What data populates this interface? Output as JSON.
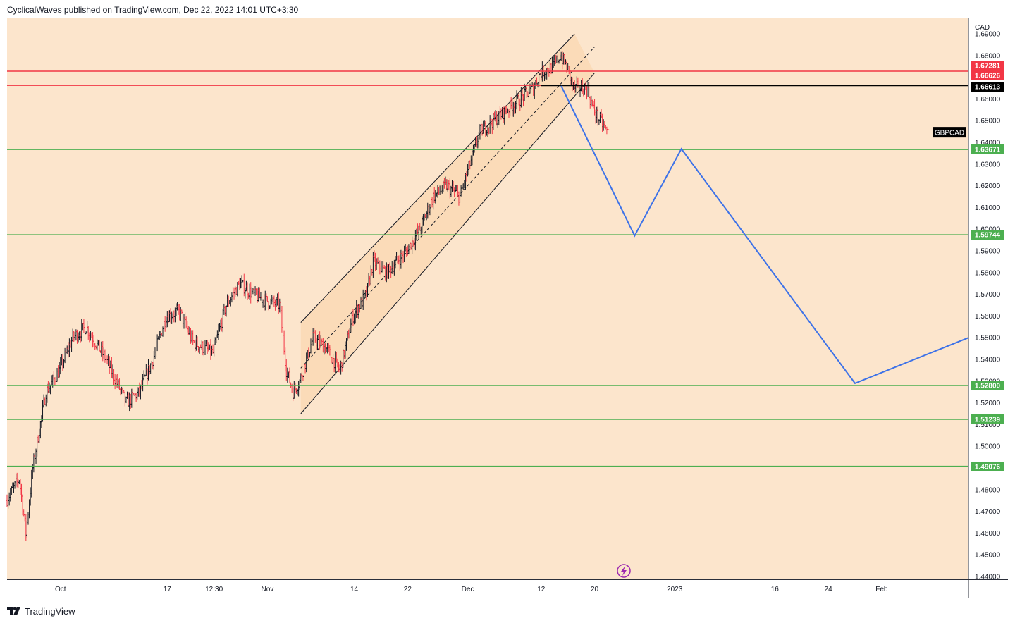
{
  "header": {
    "text": "CyclicalWaves published on TradingView.com, Dec 22, 2022 14:01 UTC+3:30"
  },
  "footer": {
    "brand": "TradingView",
    "logo_icon": "tradingview-logo-icon"
  },
  "chart_data": {
    "type": "candlestick",
    "symbol": "GBPCAD",
    "currency": "CAD",
    "background": "#fce5cc",
    "ylim": [
      1.44,
      1.69
    ],
    "y_ticks": [
      1.44,
      1.45,
      1.46,
      1.47,
      1.48,
      1.49,
      1.5,
      1.51,
      1.52,
      1.53,
      1.54,
      1.55,
      1.56,
      1.57,
      1.58,
      1.59,
      1.6,
      1.61,
      1.62,
      1.63,
      1.64,
      1.65,
      1.66,
      1.67,
      1.68,
      1.69
    ],
    "y_tick_labels": [
      "1.44000",
      "1.45000",
      "1.46000",
      "1.47000",
      "1.48000",
      "1.49000",
      "1.50000",
      "1.51000",
      "1.52000",
      "1.53000",
      "1.54000",
      "1.55000",
      "1.56000",
      "1.57000",
      "1.58000",
      "1.59000",
      "1.60000",
      "1.61000",
      "1.62000",
      "1.63000",
      "1.64000",
      "1.65000",
      "1.66000",
      "1.67000",
      "1.68000",
      "1.69000"
    ],
    "x_start": "2022-09-23",
    "x_end": "2023-02-14",
    "x_ticks": [
      {
        "label": "Oct",
        "date": "2022-10-01"
      },
      {
        "label": "17",
        "date": "2022-10-17"
      },
      {
        "label": "12:30",
        "date": "2022-10-24"
      },
      {
        "label": "Nov",
        "date": "2022-11-01"
      },
      {
        "label": "14",
        "date": "2022-11-14"
      },
      {
        "label": "22",
        "date": "2022-11-22"
      },
      {
        "label": "Dec",
        "date": "2022-12-01"
      },
      {
        "label": "12",
        "date": "2022-12-12"
      },
      {
        "label": "20",
        "date": "2022-12-20"
      },
      {
        "label": "2023",
        "date": "2023-01-01"
      },
      {
        "label": "16",
        "date": "2023-01-16"
      },
      {
        "label": "24",
        "date": "2023-01-24"
      },
      {
        "label": "Feb",
        "date": "2023-02-01"
      }
    ],
    "price_path": [
      [
        "2022-09-23",
        1.475
      ],
      [
        "2022-09-25",
        1.485
      ],
      [
        "2022-09-26",
        1.46
      ],
      [
        "2022-09-27",
        1.49
      ],
      [
        "2022-09-29",
        1.525
      ],
      [
        "2022-10-01",
        1.535
      ],
      [
        "2022-10-03",
        1.55
      ],
      [
        "2022-10-05",
        1.555
      ],
      [
        "2022-10-08",
        1.54
      ],
      [
        "2022-10-11",
        1.52
      ],
      [
        "2022-10-13",
        1.525
      ],
      [
        "2022-10-15",
        1.54
      ],
      [
        "2022-10-17",
        1.56
      ],
      [
        "2022-10-19",
        1.562
      ],
      [
        "2022-10-21",
        1.548
      ],
      [
        "2022-10-24",
        1.543
      ],
      [
        "2022-10-26",
        1.565
      ],
      [
        "2022-10-28",
        1.575
      ],
      [
        "2022-10-30",
        1.57
      ],
      [
        "2022-11-01",
        1.567
      ],
      [
        "2022-11-03",
        1.565
      ],
      [
        "2022-11-04",
        1.535
      ],
      [
        "2022-11-05",
        1.525
      ],
      [
        "2022-11-06",
        1.53
      ],
      [
        "2022-11-08",
        1.55
      ],
      [
        "2022-11-10",
        1.545
      ],
      [
        "2022-11-12",
        1.535
      ],
      [
        "2022-11-14",
        1.56
      ],
      [
        "2022-11-16",
        1.57
      ],
      [
        "2022-11-17",
        1.585
      ],
      [
        "2022-11-19",
        1.58
      ],
      [
        "2022-11-22",
        1.59
      ],
      [
        "2022-11-24",
        1.6
      ],
      [
        "2022-11-26",
        1.615
      ],
      [
        "2022-11-28",
        1.62
      ],
      [
        "2022-11-30",
        1.615
      ],
      [
        "2022-12-01",
        1.625
      ],
      [
        "2022-12-03",
        1.645
      ],
      [
        "2022-12-05",
        1.65
      ],
      [
        "2022-12-07",
        1.655
      ],
      [
        "2022-12-09",
        1.66
      ],
      [
        "2022-12-11",
        1.665
      ],
      [
        "2022-12-12",
        1.672
      ],
      [
        "2022-12-14",
        1.675
      ],
      [
        "2022-12-15",
        1.68
      ],
      [
        "2022-12-16",
        1.675
      ],
      [
        "2022-12-17",
        1.665
      ],
      [
        "2022-12-19",
        1.665
      ],
      [
        "2022-12-20",
        1.655
      ],
      [
        "2022-12-21",
        1.65
      ],
      [
        "2022-12-22",
        1.645
      ]
    ],
    "horizontal_levels": [
      {
        "value": 1.67281,
        "label": "1.67281",
        "color": "#f23645"
      },
      {
        "value": 1.66626,
        "label": "1.66626",
        "color": "#f23645"
      },
      {
        "value": 1.66613,
        "label": "1.66613",
        "color": "#000000"
      },
      {
        "value": 1.63671,
        "label": "1.63671",
        "color": "#4caf50"
      },
      {
        "value": 1.59744,
        "label": "1.59744",
        "color": "#4caf50"
      },
      {
        "value": 1.528,
        "label": "1.52800",
        "color": "#4caf50"
      },
      {
        "value": 1.51239,
        "label": "1.51239",
        "color": "#4caf50"
      },
      {
        "value": 1.49076,
        "label": "1.49076",
        "color": "#4caf50"
      }
    ],
    "channel": {
      "upper": [
        [
          "2022-11-06",
          1.557
        ],
        [
          "2022-12-17",
          1.69
        ]
      ],
      "mid": [
        [
          "2022-11-06",
          1.536
        ],
        [
          "2022-12-20",
          1.684
        ]
      ],
      "lower": [
        [
          "2022-11-06",
          1.515
        ],
        [
          "2022-12-20",
          1.672
        ]
      ],
      "color": "#fad4a8"
    },
    "projection_path": [
      [
        "2022-12-15",
        1.666
      ],
      [
        "2022-12-26",
        1.597
      ],
      [
        "2023-01-02",
        1.637
      ],
      [
        "2023-01-28",
        1.529
      ],
      [
        "2023-02-14",
        1.55
      ]
    ],
    "projection_color": "#3d72e8",
    "symbol_tag": {
      "text": "GBPCAD",
      "value": 1.6445
    },
    "bull_color": "#131722",
    "bear_color": "#f23645"
  }
}
